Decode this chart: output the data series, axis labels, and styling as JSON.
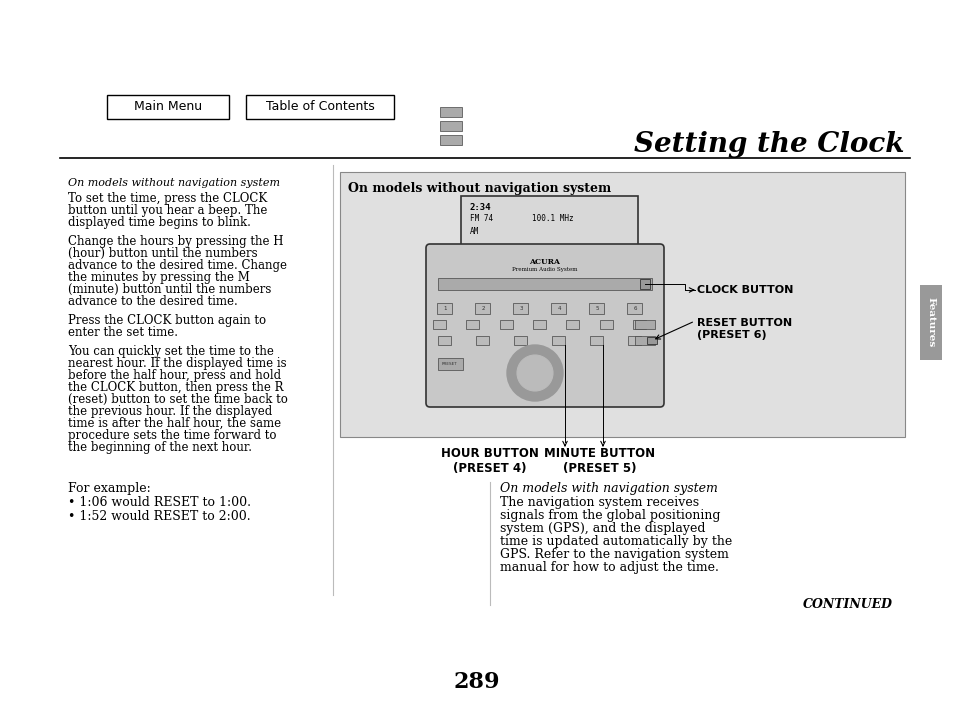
{
  "bg_color": "#ffffff",
  "title": "Setting the Clock",
  "page_number": "289",
  "button1_text": "Main Menu",
  "button2_text": "Table of Contents",
  "section_tab": "Features",
  "diagram_bg": "#e0e0e0",
  "diagram_title": "On models without navigation system",
  "label_clock": "CLOCK BUTTON",
  "label_reset": "RESET BUTTON\n(PRESET 6)",
  "label_hour": "HOUR BUTTON\n(PRESET 4)",
  "label_minute": "MINUTE BUTTON\n(PRESET 5)",
  "left_col_italic": "On models without navigation system",
  "para1": "To set the time, press the CLOCK\nbutton until you hear a beep. The\ndisplayed time begins to blink.",
  "para2": "Change the hours by pressing the H\n(hour) button until the numbers\nadvance to the desired time. Change\nthe minutes by pressing the M\n(minute) button until the numbers\nadvance to the desired time.",
  "para3": "Press the CLOCK button again to\nenter the set time.",
  "para4": "You can quickly set the time to the\nnearest hour. If the displayed time is\nbefore the half hour, press and hold\nthe CLOCK button, then press the R\n(reset) button to set the time back to\nthe previous hour. If the displayed\ntime is after the half hour, the same\nprocedure sets the time forward to\nthe beginning of the next hour.",
  "bottom_left_line1": "For example:",
  "bottom_left_line2": "• 1:06 would RESET to 1:00.",
  "bottom_left_line3": "• 1:52 would RESET to 2:00.",
  "bottom_right_italic": "On models with navigation system",
  "bottom_right_text": "The navigation system receives\nsignals from the global positioning\nsystem (GPS), and the displayed\ntime is updated automatically by the\nGPS. Refer to the navigation system\nmanual for how to adjust the time.",
  "continued_text": "CONTINUED"
}
